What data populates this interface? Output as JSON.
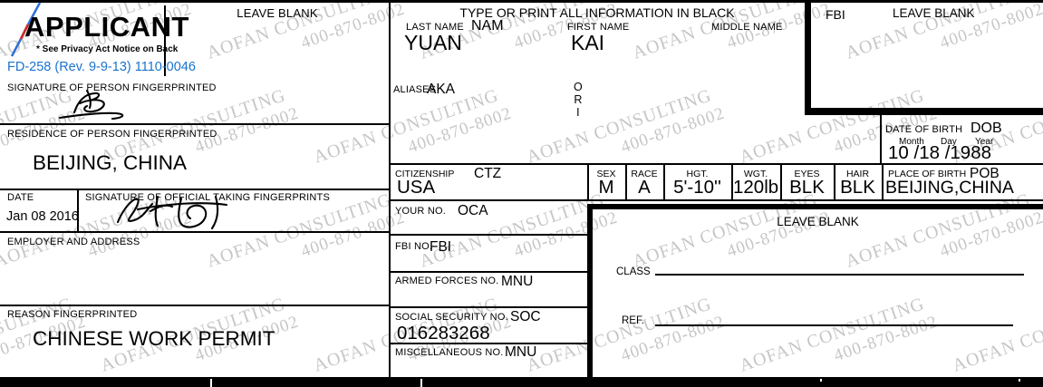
{
  "header": {
    "applicant_title": "APPLICANT",
    "privacy_note": "* See Privacy Act Notice on Back",
    "form_number": "FD-258 (Rev. 9-9-13) 1110-0046",
    "leave_blank_left": "LEAVE BLANK",
    "type_print_instruction": "TYPE OR PRINT ALL INFORMATION IN BLACK",
    "fbi_code": "FBI",
    "leave_blank_right": "LEAVE BLANK"
  },
  "name_section": {
    "last_name_label": "LAST NAME",
    "last_name_code": "NAM",
    "last_name_value": "YUAN",
    "first_name_label": "FIRST NAME",
    "first_name_value": "KAI",
    "middle_name_label": "MIDDLE NAME",
    "aliases_label": "ALIASES",
    "aliases_code": "AKA",
    "ori": [
      "O",
      "R",
      "I"
    ]
  },
  "signature_section": {
    "person_label": "SIGNATURE OF PERSON FINGERPRINTED",
    "residence_label": "RESIDENCE OF PERSON FINGERPRINTED",
    "residence_value": "BEIJING, CHINA",
    "date_label": "DATE",
    "date_value": "Jan 08 2016",
    "official_label": "SIGNATURE OF OFFICIAL TAKING FINGERPRINTS",
    "employer_label": "EMPLOYER AND ADDRESS",
    "reason_label": "REASON FINGERPRINTED",
    "reason_value": "CHINESE WORK PERMIT"
  },
  "dob_section": {
    "label": "DATE OF BIRTH",
    "code": "DOB",
    "month_label": "Month",
    "day_label": "Day",
    "year_label": "Year",
    "value": "10 /18 /1988"
  },
  "descriptors": {
    "citizenship_label": "CITIZENSHIP",
    "citizenship_code": "CTZ",
    "citizenship_value": "USA",
    "sex_label": "SEX",
    "sex_value": "M",
    "race_label": "RACE",
    "race_value": "A",
    "height_label": "HGT.",
    "height_value": "5'-10''",
    "weight_label": "WGT.",
    "weight_value": "120lb",
    "eyes_label": "EYES",
    "eyes_value": "BLK",
    "hair_label": "HAIR",
    "hair_value": "BLK",
    "pob_label": "PLACE OF BIRTH",
    "pob_code": "POB",
    "pob_value": "BEIJING,CHINA"
  },
  "numbers_section": {
    "your_no_label": "YOUR NO.",
    "your_no_code": "OCA",
    "fbi_no_label": "FBI NO.",
    "fbi_no_code": "FBI",
    "armed_forces_label": "ARMED FORCES NO.",
    "armed_forces_code": "MNU",
    "ssn_label": "SOCIAL SECURITY NO.",
    "ssn_code": "SOC",
    "ssn_value": "016283268",
    "misc_label": "MISCELLANEOUS NO.",
    "misc_code": "MNU"
  },
  "leave_blank_box": {
    "title": "LEAVE BLANK",
    "class_label": "CLASS",
    "ref_label": "REF."
  },
  "watermark": {
    "line1": "AOFAN CONSULTING",
    "line2": "400-870-8002"
  },
  "colors": {
    "form_number_blue": "#1873cc",
    "watermark_gray": "#8f8f8f",
    "ink_black": "#000000"
  }
}
